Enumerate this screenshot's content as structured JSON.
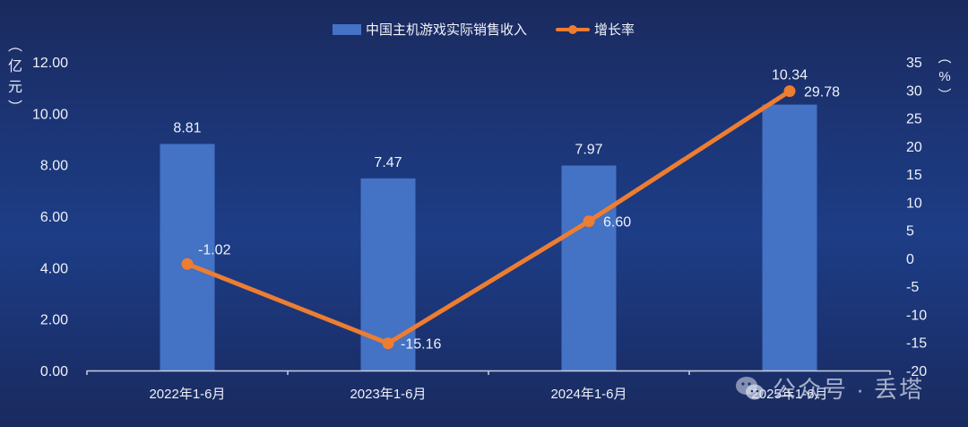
{
  "legend": {
    "bar_label": "中国主机游戏实际销售收入",
    "line_label": "增长率"
  },
  "axes": {
    "left_unit": [
      "︵",
      "亿",
      "元",
      "︶"
    ],
    "right_unit": [
      "︵",
      "%",
      "︶"
    ],
    "left_ticks": [
      "12.00",
      "10.00",
      "8.00",
      "6.00",
      "4.00",
      "2.00",
      "0.00"
    ],
    "right_ticks": [
      "35",
      "30",
      "25",
      "20",
      "15",
      "10",
      "5",
      "0",
      "-5",
      "-10",
      "-15",
      "-20"
    ]
  },
  "watermark": {
    "text": "公众号 · 丢塔",
    "icon": "wechat-icon"
  },
  "colors": {
    "bar": "#4472c4",
    "line": "#ed7d31",
    "axis": "#c8cede",
    "text": "#eef1f8"
  },
  "chart_data": {
    "type": "bar+line",
    "categories": [
      "2022年1-6月",
      "2023年1-6月",
      "2024年1-6月",
      "2025年1-6月"
    ],
    "series": [
      {
        "name": "中国主机游戏实际销售收入",
        "type": "bar",
        "axis": "left",
        "values": [
          8.81,
          7.47,
          7.97,
          10.34
        ],
        "labels": [
          "8.81",
          "7.47",
          "7.97",
          "10.34"
        ]
      },
      {
        "name": "增长率",
        "type": "line",
        "axis": "right",
        "values": [
          -1.02,
          -15.16,
          6.6,
          29.78
        ],
        "labels": [
          "-1.02",
          "-15.16",
          "6.60",
          "29.78"
        ]
      }
    ],
    "title": "",
    "xlabel": "",
    "ylabel": "（亿元）",
    "y2label": "（%）",
    "ylim": [
      0,
      12
    ],
    "y2lim": [
      -20,
      35
    ],
    "grid": false,
    "legend_position": "top"
  }
}
